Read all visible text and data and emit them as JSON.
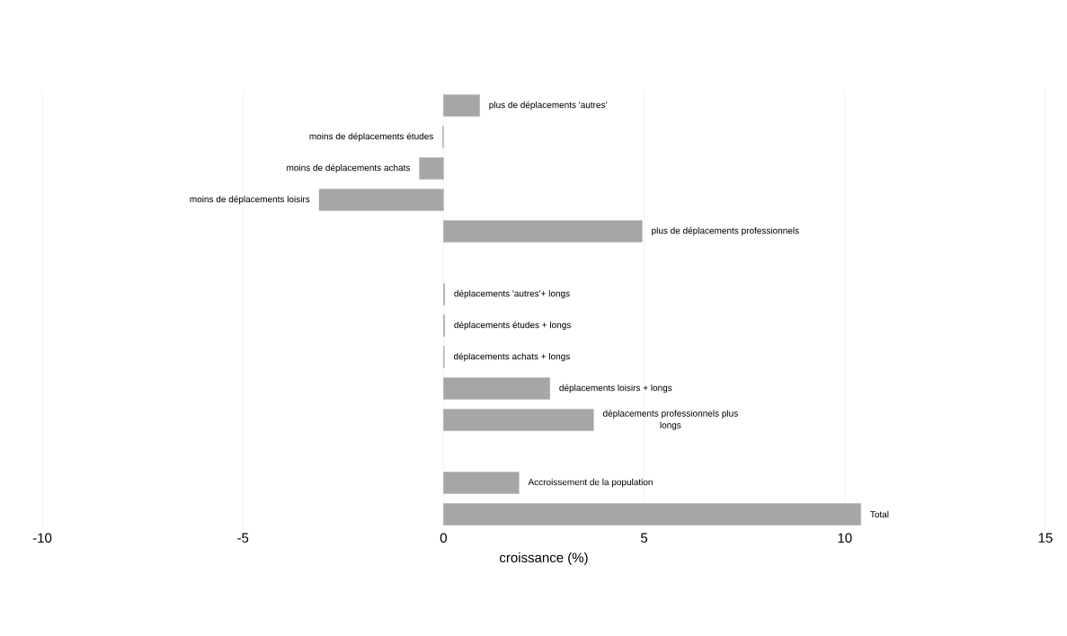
{
  "chart_data": {
    "type": "bar",
    "orientation": "horizontal",
    "xlabel": "croissance (%)",
    "categories": [
      "plus de déplacements 'autres'",
      "moins de déplacements études",
      "moins de déplacements achats",
      "moins de déplacements loisirs",
      "plus de déplacements professionnels",
      null,
      "déplacements 'autres'+ longs",
      "déplacements études + longs",
      "déplacements achats + longs",
      "déplacements loisirs + longs",
      "déplacements professionnels plus longs",
      null,
      "Accroissement de la population",
      "Total"
    ],
    "values": [
      0.9,
      -0.02,
      -0.6,
      -3.1,
      4.95,
      null,
      0.03,
      0.03,
      0.02,
      2.65,
      3.74,
      null,
      1.88,
      10.4
    ],
    "color": "#a6a6a6",
    "xlim": [
      -10,
      15
    ],
    "xticks": [
      -10,
      -5,
      0,
      5,
      10,
      15
    ],
    "grid": "x"
  }
}
